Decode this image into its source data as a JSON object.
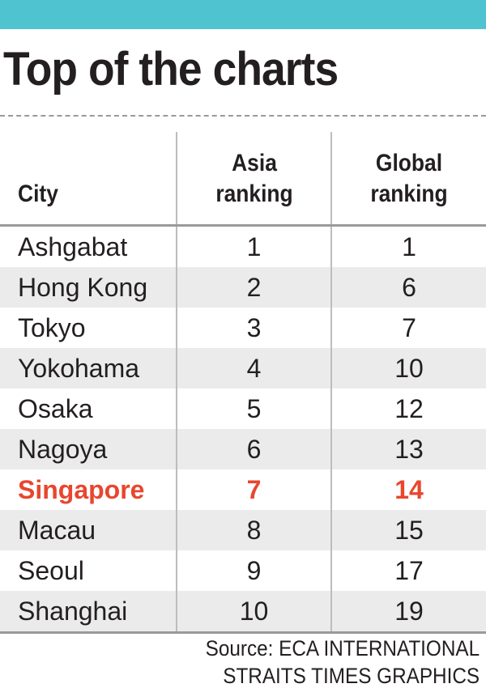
{
  "colors": {
    "top_bar": "#4fc3cf",
    "highlight": "#e8462e",
    "stripe": "#ebebeb",
    "text": "#231f20"
  },
  "title": "Top of the charts",
  "chart_data": {
    "type": "table",
    "columns": [
      "City",
      "Asia ranking",
      "Global ranking"
    ],
    "rows": [
      {
        "city": "Ashgabat",
        "asia": "1",
        "global": "1",
        "highlight": false
      },
      {
        "city": "Hong Kong",
        "asia": "2",
        "global": "6",
        "highlight": false
      },
      {
        "city": "Tokyo",
        "asia": "3",
        "global": "7",
        "highlight": false
      },
      {
        "city": "Yokohama",
        "asia": "4",
        "global": "10",
        "highlight": false
      },
      {
        "city": "Osaka",
        "asia": "5",
        "global": "12",
        "highlight": false
      },
      {
        "city": "Nagoya",
        "asia": "6",
        "global": "13",
        "highlight": false
      },
      {
        "city": "Singapore",
        "asia": "7",
        "global": "14",
        "highlight": true
      },
      {
        "city": "Macau",
        "asia": "8",
        "global": "15",
        "highlight": false
      },
      {
        "city": "Seoul",
        "asia": "9",
        "global": "17",
        "highlight": false
      },
      {
        "city": "Shanghai",
        "asia": "10",
        "global": "19",
        "highlight": false
      }
    ]
  },
  "source": {
    "line1": "Source: ECA INTERNATIONAL",
    "line2": "STRAITS TIMES GRAPHICS"
  }
}
